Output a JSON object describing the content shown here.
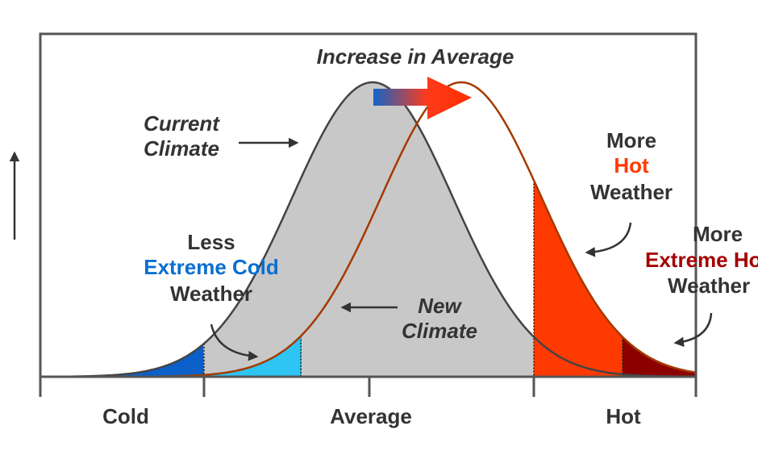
{
  "annotations": {
    "increase": "Increase in Average",
    "current_climate": [
      "Current",
      "Climate"
    ],
    "less_cold": [
      "Less",
      "Extreme Cold",
      "Weather"
    ],
    "new_climate": [
      "New",
      "Climate"
    ],
    "more_hot": [
      "More",
      "Hot",
      "Weather"
    ],
    "more_extreme_hot": [
      "More",
      "Extreme Hot",
      "Weather"
    ]
  },
  "axis_labels": [
    "Cold",
    "Average",
    "Hot"
  ]
}
